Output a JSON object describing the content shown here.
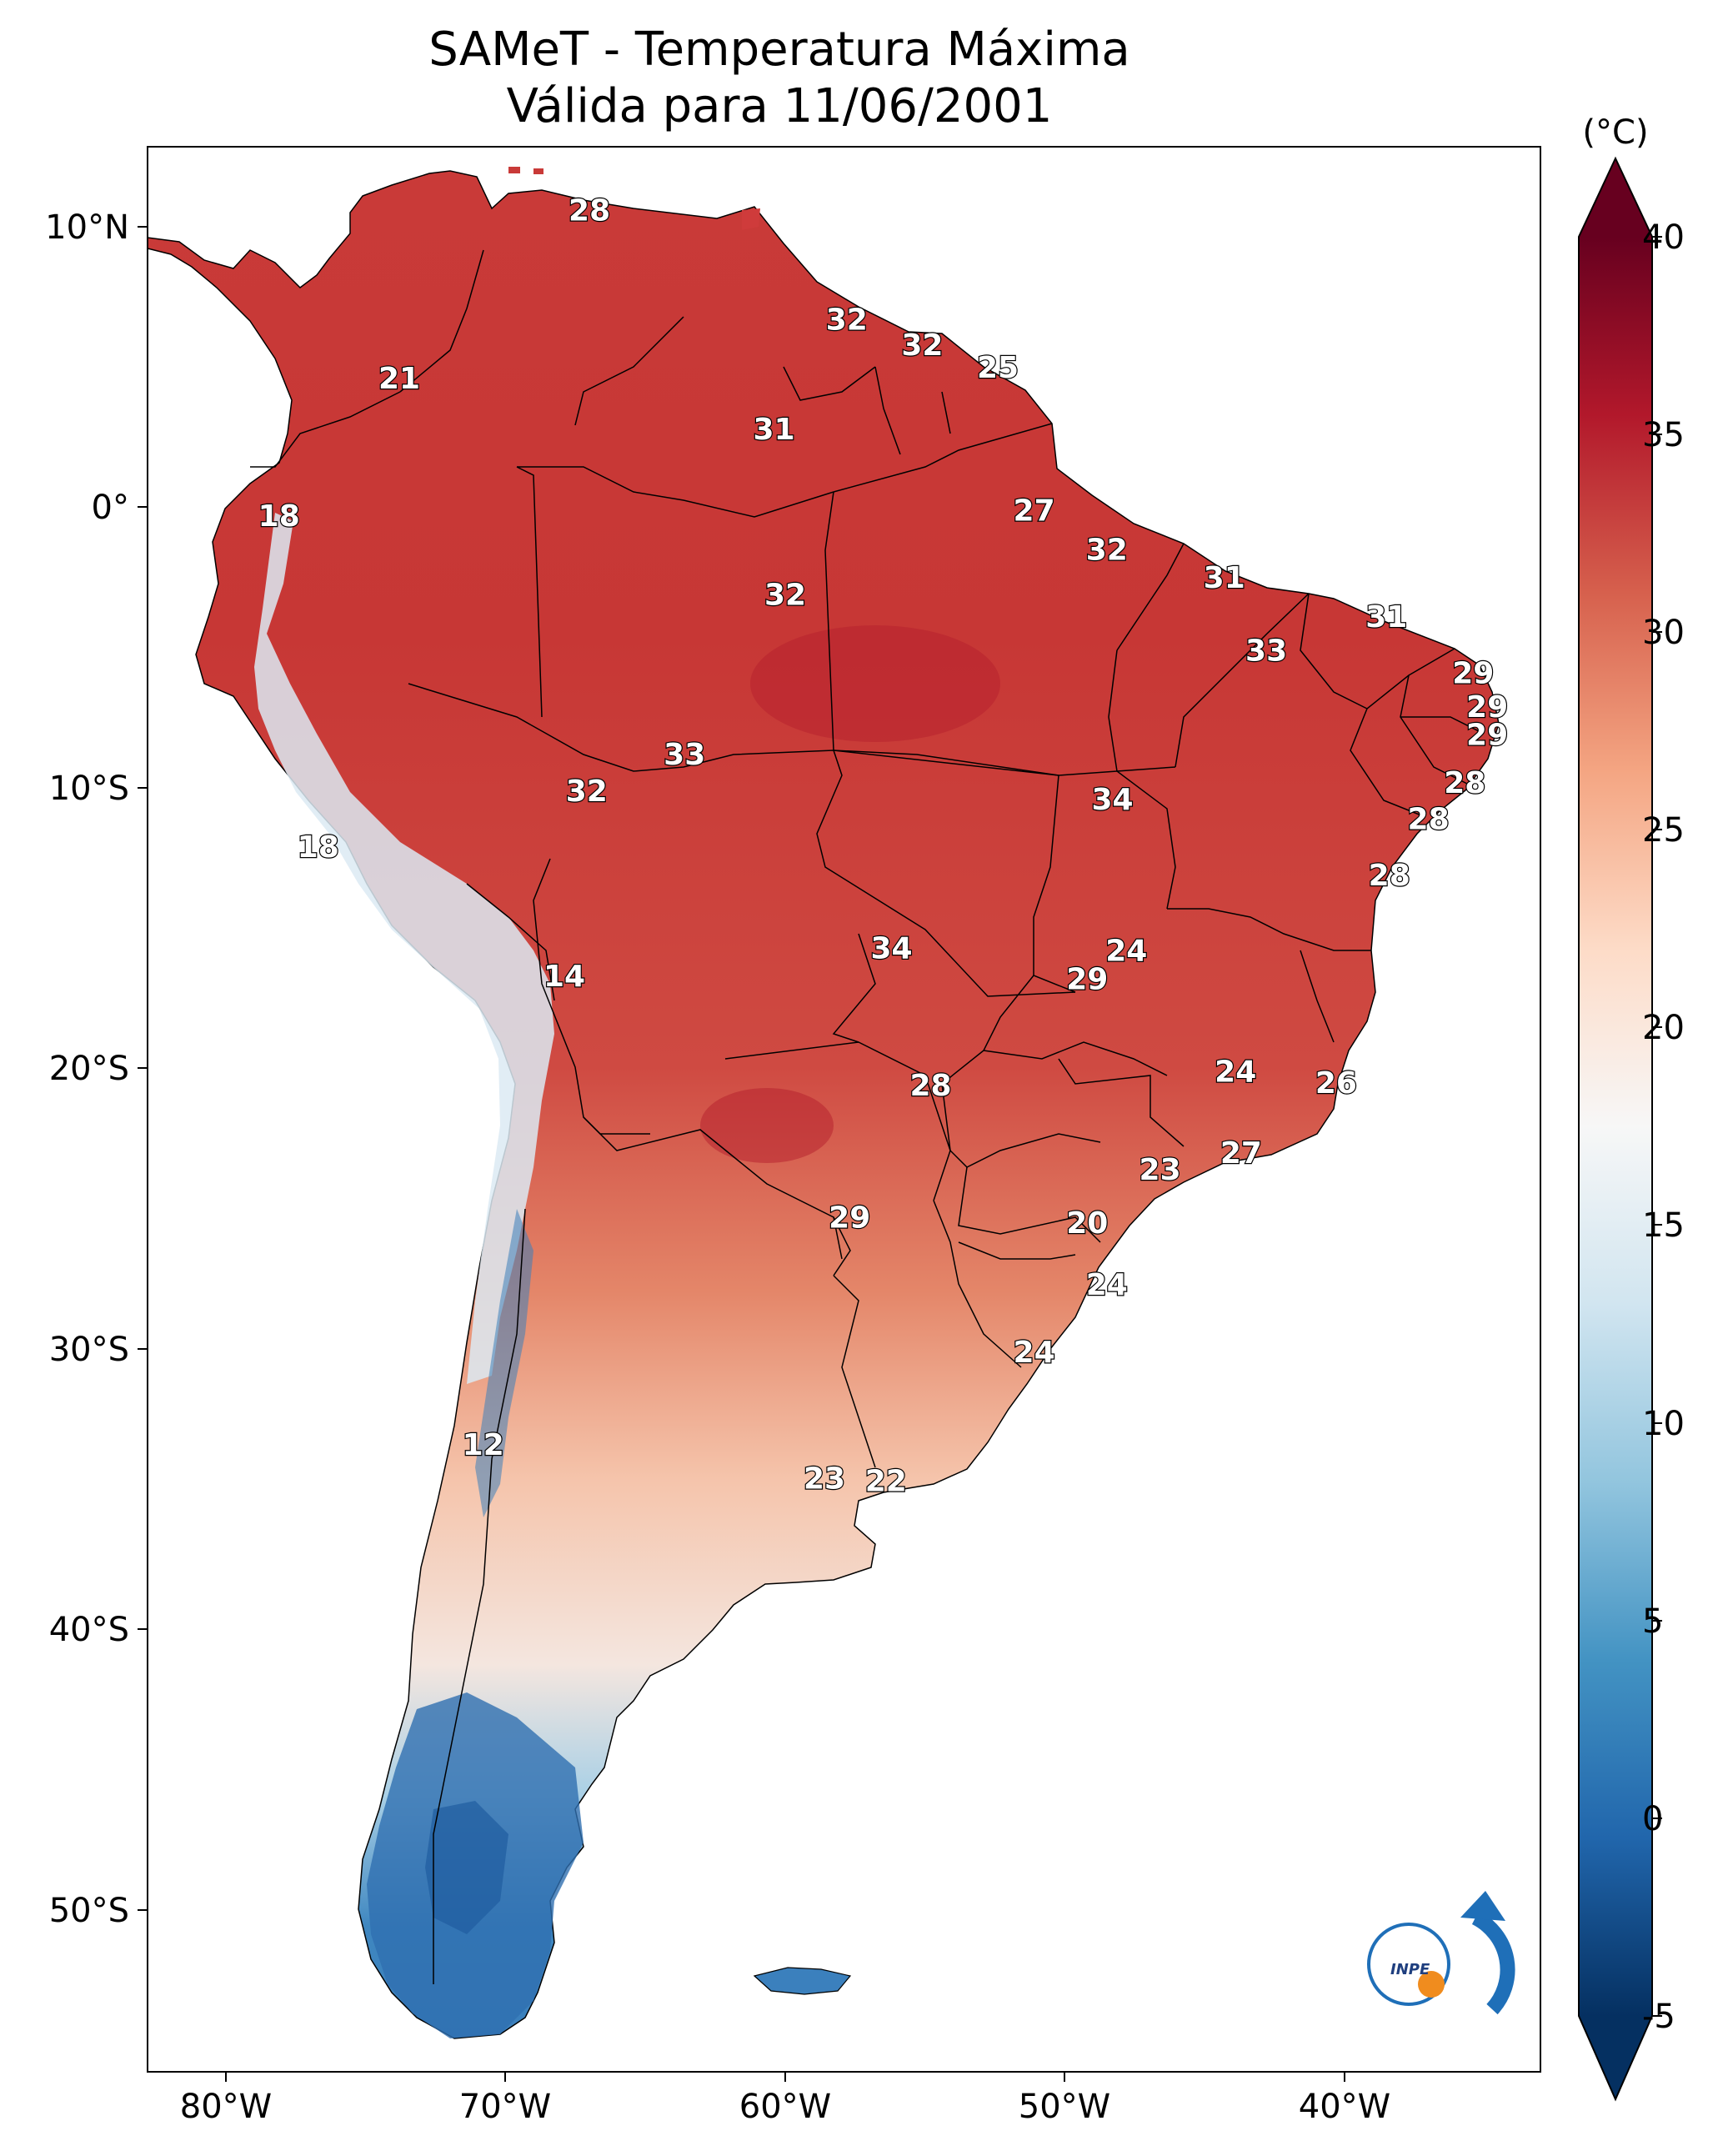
{
  "title": {
    "line1": "SAMeT - Temperatura Máxima",
    "line2": "Válida para 11/06/2001"
  },
  "colorbar": {
    "unit": "(°C)",
    "ticks": [
      "40",
      "35",
      "30",
      "25",
      "20",
      "15",
      "10",
      "5",
      "0",
      "-5"
    ],
    "range": [
      -5,
      40
    ],
    "colors": [
      "#053061",
      "#2166ac",
      "#4393c3",
      "#92c5de",
      "#d1e5f0",
      "#f7f7f7",
      "#fddbc7",
      "#f4a582",
      "#d6604d",
      "#b2182b",
      "#67001f"
    ]
  },
  "axes": {
    "lon_labels": [
      "80°W",
      "70°W",
      "60°W",
      "50°W",
      "40°W"
    ],
    "lat_labels": [
      "10°N",
      "0°",
      "10°S",
      "20°S",
      "30°S",
      "40°S",
      "50°S"
    ]
  },
  "map_labels": [
    {
      "text": "28",
      "lon": -67,
      "lat": 10.6
    },
    {
      "text": "32",
      "lon": -57.8,
      "lat": 6.7
    },
    {
      "text": "32",
      "lon": -55.1,
      "lat": 5.8
    },
    {
      "text": "25",
      "lon": -52.4,
      "lat": 5
    },
    {
      "text": "21",
      "lon": -73.8,
      "lat": 4.6
    },
    {
      "text": "31",
      "lon": -60.4,
      "lat": 2.8
    },
    {
      "text": "18",
      "lon": -78.1,
      "lat": -0.3
    },
    {
      "text": "27",
      "lon": -51.1,
      "lat": -0.1
    },
    {
      "text": "32",
      "lon": -48.5,
      "lat": -1.5
    },
    {
      "text": "31",
      "lon": -44.3,
      "lat": -2.5
    },
    {
      "text": "32",
      "lon": -60,
      "lat": -3.1
    },
    {
      "text": "31",
      "lon": -38.5,
      "lat": -3.9
    },
    {
      "text": "33",
      "lon": -42.8,
      "lat": -5.1
    },
    {
      "text": "29",
      "lon": -35.4,
      "lat": -5.9
    },
    {
      "text": "29",
      "lon": -34.9,
      "lat": -7.1
    },
    {
      "text": "29",
      "lon": -34.9,
      "lat": -8.1
    },
    {
      "text": "33",
      "lon": -63.6,
      "lat": -8.8
    },
    {
      "text": "28",
      "lon": -35.7,
      "lat": -9.8
    },
    {
      "text": "32",
      "lon": -67.1,
      "lat": -10.1
    },
    {
      "text": "34",
      "lon": -48.3,
      "lat": -10.4
    },
    {
      "text": "28",
      "lon": -37,
      "lat": -11.1
    },
    {
      "text": "18",
      "lon": -76.7,
      "lat": -12.1
    },
    {
      "text": "28",
      "lon": -38.4,
      "lat": -13.1
    },
    {
      "text": "34",
      "lon": -56.2,
      "lat": -15.7
    },
    {
      "text": "24",
      "lon": -47.8,
      "lat": -15.8
    },
    {
      "text": "29",
      "lon": -49.2,
      "lat": -16.8
    },
    {
      "text": "14",
      "lon": -67.9,
      "lat": -16.7
    },
    {
      "text": "24",
      "lon": -43.9,
      "lat": -20.1
    },
    {
      "text": "26",
      "lon": -40.3,
      "lat": -20.5
    },
    {
      "text": "28",
      "lon": -54.8,
      "lat": -20.6
    },
    {
      "text": "27",
      "lon": -43.7,
      "lat": -23
    },
    {
      "text": "23",
      "lon": -46.6,
      "lat": -23.6
    },
    {
      "text": "29",
      "lon": -57.7,
      "lat": -25.3
    },
    {
      "text": "20",
      "lon": -49.2,
      "lat": -25.5
    },
    {
      "text": "24",
      "lon": -48.5,
      "lat": -27.7
    },
    {
      "text": "24",
      "lon": -51.1,
      "lat": -30.1
    },
    {
      "text": "12",
      "lon": -70.8,
      "lat": -33.4
    },
    {
      "text": "23",
      "lon": -58.6,
      "lat": -34.6
    },
    {
      "text": "22",
      "lon": -56.4,
      "lat": -34.7
    }
  ],
  "logo": {
    "text": "INPE"
  }
}
